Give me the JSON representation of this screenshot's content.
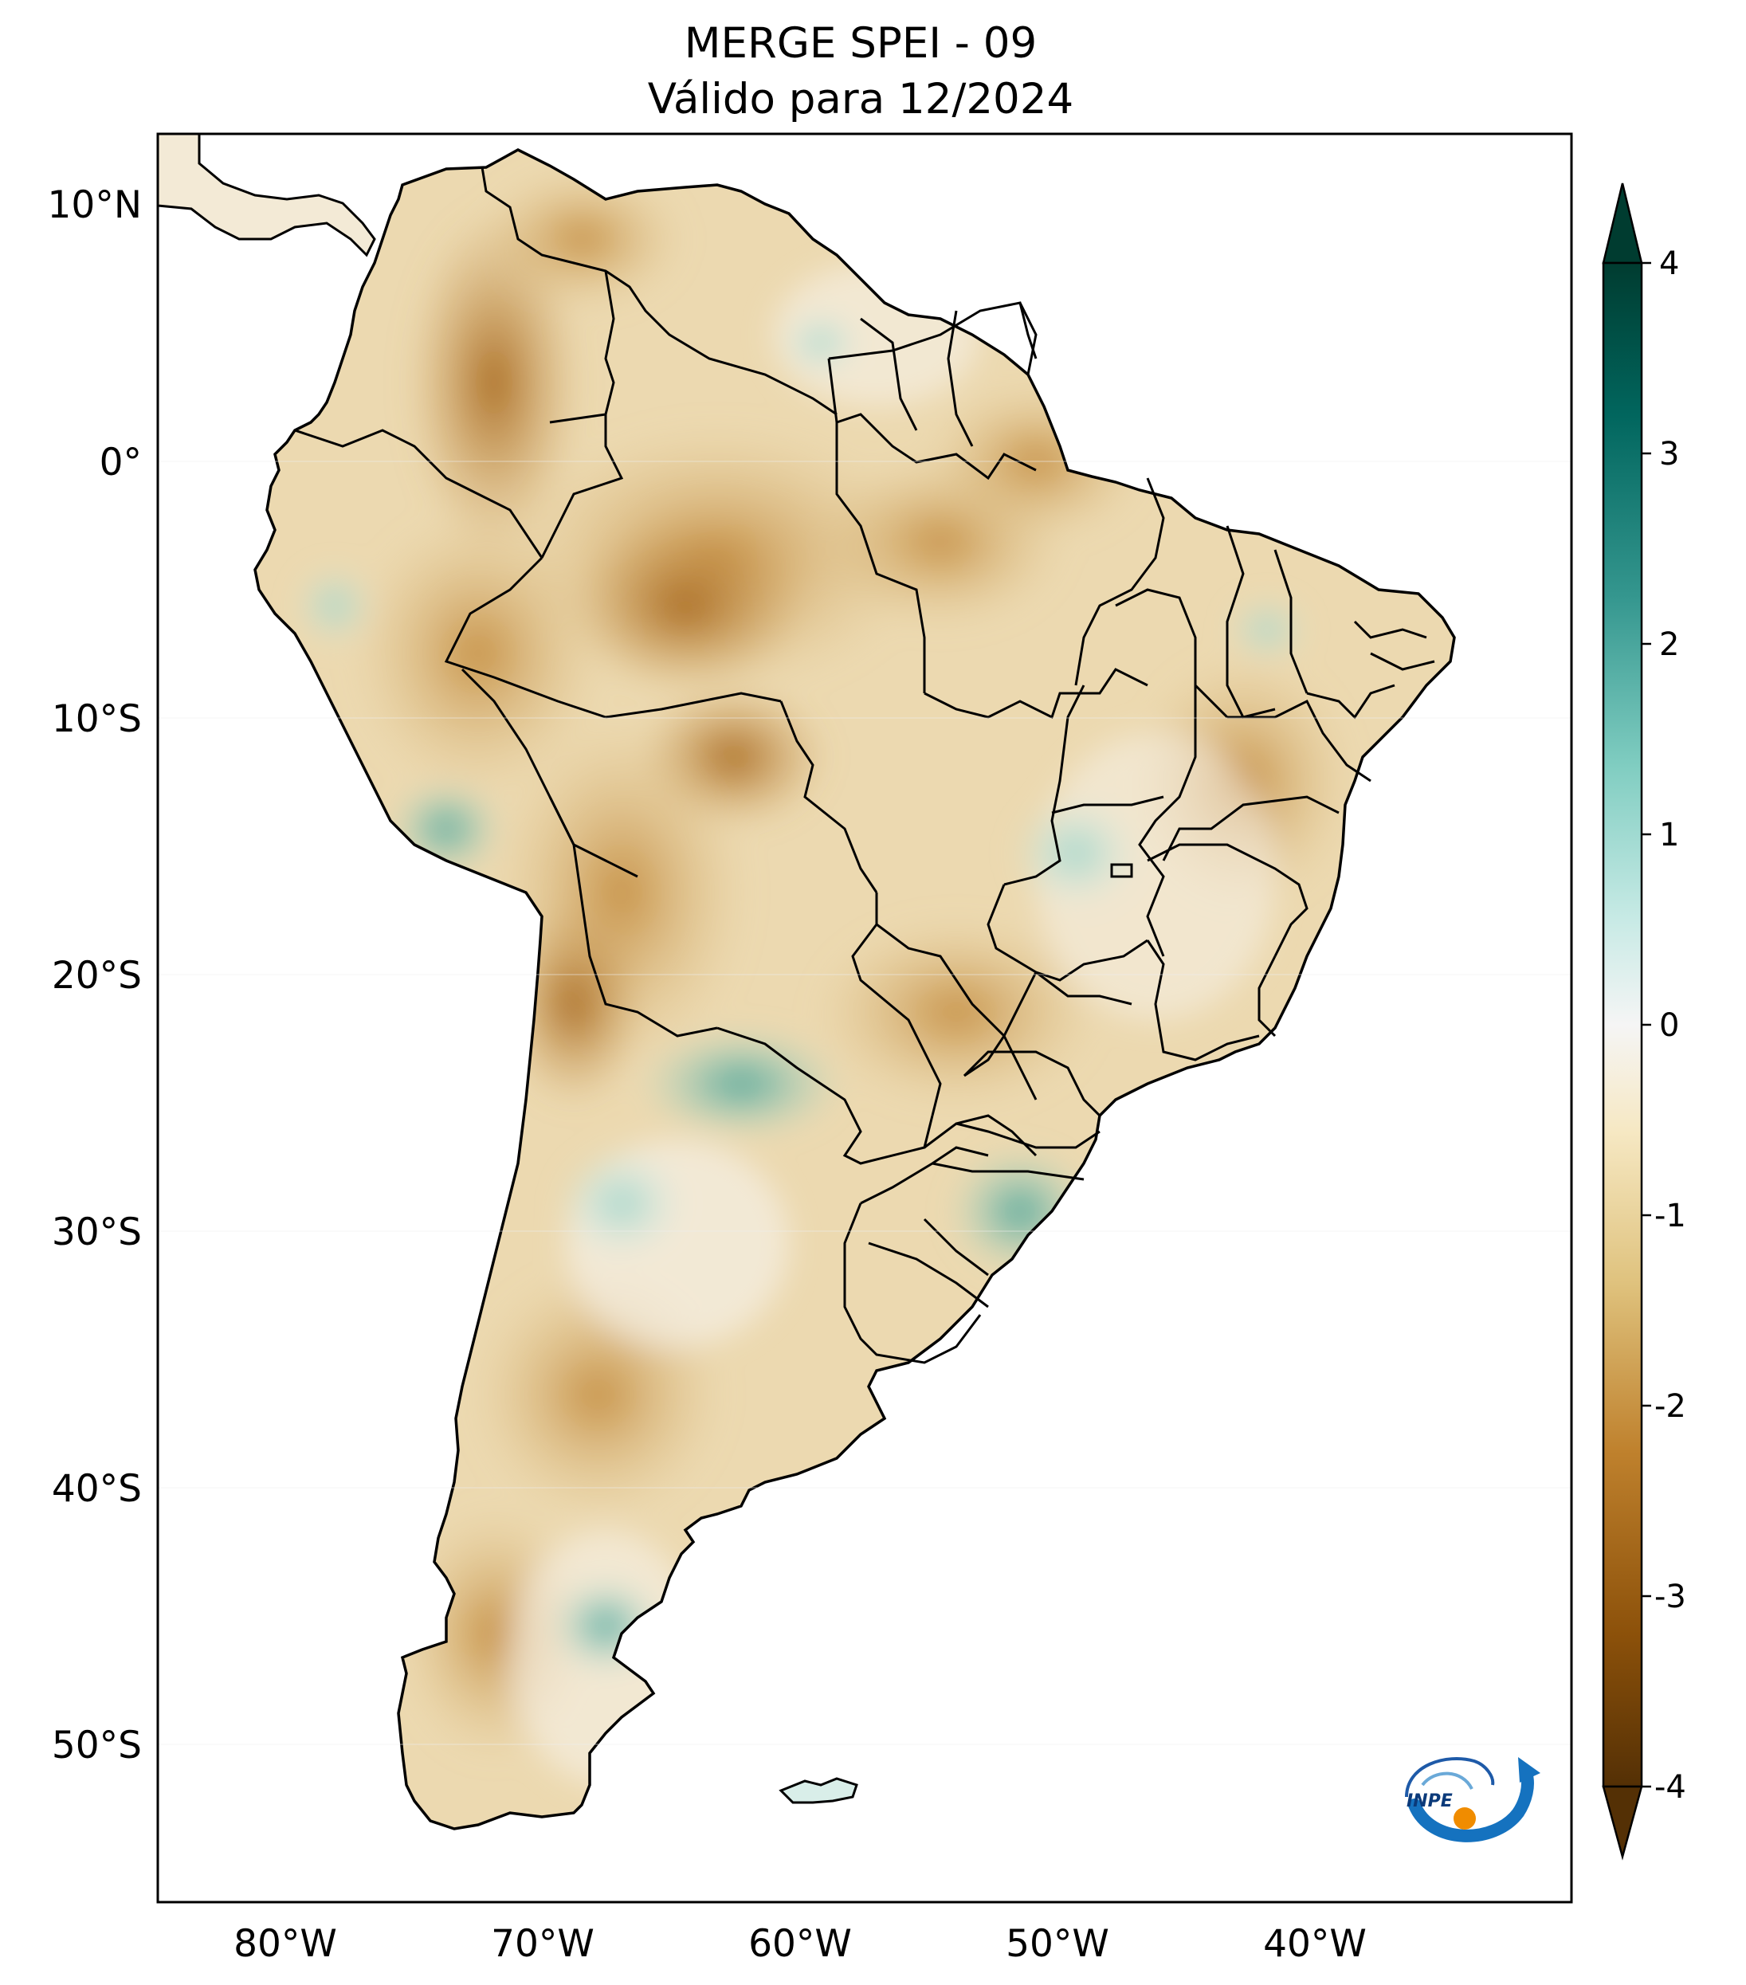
{
  "title": {
    "line1": "MERGE   SPEI - 09",
    "line2": "Válido para 12/2024"
  },
  "map": {
    "lat_ticks": [
      "10°N",
      "0°",
      "10°S",
      "20°S",
      "30°S",
      "40°S",
      "50°S"
    ],
    "lon_ticks": [
      "80°W",
      "70°W",
      "60°W",
      "50°W",
      "40°W"
    ],
    "lon_range": [
      -85,
      -29
    ],
    "lat_range": [
      -56,
      13
    ]
  },
  "colorbar": {
    "ticks": [
      "4",
      "3",
      "2",
      "1",
      "0",
      "-1",
      "-2",
      "-3",
      "-4"
    ],
    "min": -4,
    "max": 4,
    "extend": "both",
    "colors": {
      "dry_extreme": "#543005",
      "dry_strong": "#8c510a",
      "dry_moderate": "#bf812d",
      "dry_mild": "#dfc27d",
      "dry_light": "#f6e8c3",
      "neutral": "#f5f5f5",
      "wet_light": "#c7eae5",
      "wet_mild": "#80cdc1",
      "wet_moderate": "#35978f",
      "wet_strong": "#01665e",
      "wet_extreme": "#003c30"
    }
  },
  "logo": {
    "text": "INPE",
    "icon": "inpe-logo-icon"
  }
}
